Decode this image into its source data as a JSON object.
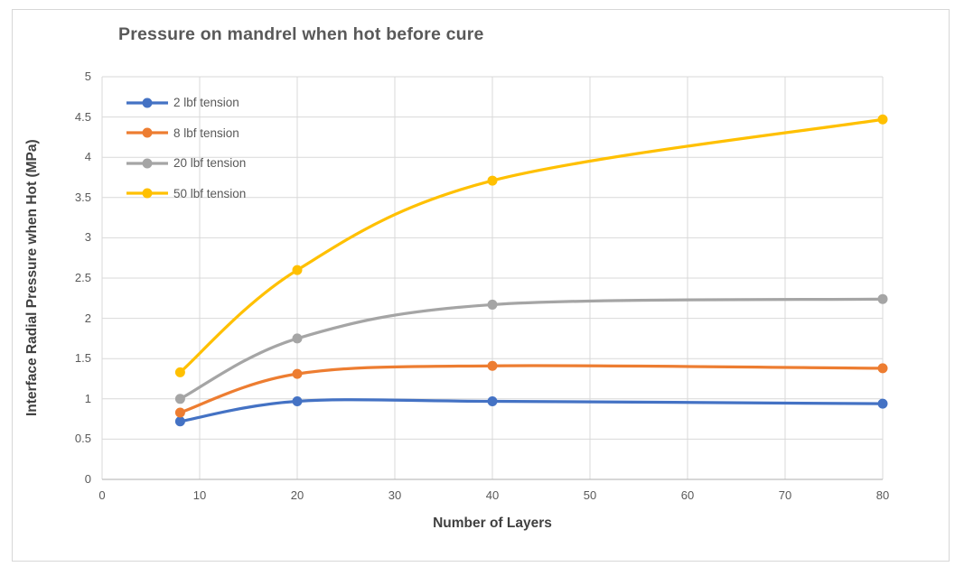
{
  "chart_data": {
    "type": "line",
    "title": "Pressure on mandrel when hot before cure",
    "xlabel": "Number of Layers",
    "ylabel": "Interface Radial Pressure when Hot (MPa)",
    "x": [
      8,
      20,
      40,
      80
    ],
    "series": [
      {
        "name": "2 lbf tension",
        "color": "#4472C4",
        "values": [
          0.72,
          0.97,
          0.97,
          0.94
        ]
      },
      {
        "name": "8 lbf tension",
        "color": "#ED7D31",
        "values": [
          0.83,
          1.31,
          1.41,
          1.38
        ]
      },
      {
        "name": "20 lbf tension",
        "color": "#A5A5A5",
        "values": [
          1.0,
          1.75,
          2.17,
          2.24
        ]
      },
      {
        "name": "50 lbf tension",
        "color": "#FFC000",
        "values": [
          1.33,
          2.6,
          3.71,
          4.47
        ]
      }
    ],
    "xlim": [
      0,
      80
    ],
    "ylim": [
      0,
      5
    ],
    "xticks": [
      0,
      10,
      20,
      30,
      40,
      50,
      60,
      70,
      80
    ],
    "yticks": [
      0,
      0.5,
      1,
      1.5,
      2,
      2.5,
      3,
      3.5,
      4,
      4.5,
      5
    ],
    "ytick_labels": [
      "0",
      "0.5",
      "1",
      "1.5",
      "2",
      "2.5",
      "3",
      "3.5",
      "4",
      "4.5",
      "5"
    ],
    "grid": true,
    "smooth": true,
    "legend_position": "top-left-inside",
    "marker": "circle"
  },
  "style": {
    "gridline_color": "#D9D9D9",
    "axis_line_color": "#BFBFBF",
    "frame_border_color": "#D7D7D7",
    "tick_label_color": "#595959",
    "title_color": "#595959",
    "axis_title_color": "#404040",
    "line_width": 3.25,
    "marker_radius": 5.5
  }
}
